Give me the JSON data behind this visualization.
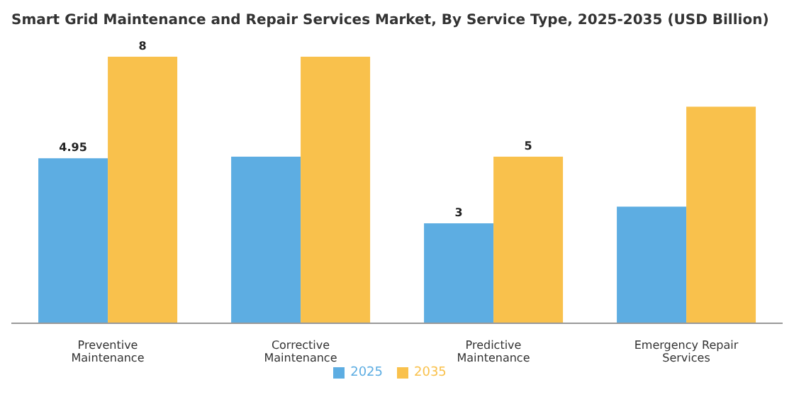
{
  "chart_data": {
    "type": "bar",
    "title": "Smart Grid Maintenance and Repair Services Market, By Service Type, 2025-2035 (USD Billion)",
    "categories": [
      "Preventive Maintenance",
      "Corrective Maintenance",
      "Predictive Maintenance",
      "Emergency Repair Services"
    ],
    "series": [
      {
        "name": "2025",
        "color": "#5dade2",
        "values": [
          4.95,
          5.0,
          3,
          3.5
        ],
        "value_labels": [
          "4.95",
          null,
          "3",
          null
        ]
      },
      {
        "name": "2035",
        "color": "#f9c14c",
        "values": [
          8,
          8,
          5,
          6.5
        ],
        "value_labels": [
          "8",
          null,
          "5",
          null
        ]
      }
    ],
    "legend": "bottom"
  }
}
